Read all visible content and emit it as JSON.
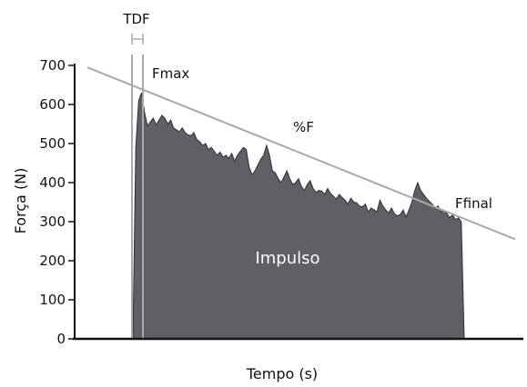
{
  "chart_data": {
    "type": "area",
    "title": "",
    "xlabel": "Tempo (s)",
    "ylabel": "Força (N)",
    "ylim": [
      0,
      700
    ],
    "yticks": [
      0,
      100,
      200,
      300,
      400,
      500,
      600,
      700
    ],
    "x_ticks_shown": false,
    "grid": false,
    "fill_color": "#5f6065",
    "line_color": "#a9a9ab",
    "series": [
      {
        "values": [
          0,
          490,
          610,
          630,
          580,
          545,
          555,
          565,
          548,
          560,
          572,
          565,
          550,
          560,
          540,
          535,
          530,
          540,
          528,
          522,
          520,
          528,
          510,
          505,
          495,
          500,
          485,
          490,
          480,
          470,
          478,
          465,
          470,
          462,
          475,
          455,
          470,
          480,
          490,
          485,
          440,
          420,
          430,
          445,
          460,
          470,
          495,
          470,
          430,
          425,
          410,
          400,
          415,
          430,
          410,
          395,
          400,
          410,
          390,
          380,
          395,
          405,
          385,
          375,
          380,
          378,
          370,
          385,
          372,
          365,
          358,
          370,
          362,
          355,
          345,
          360,
          350,
          348,
          340,
          338,
          345,
          325,
          335,
          330,
          325,
          355,
          340,
          330,
          322,
          335,
          320,
          315,
          318,
          330,
          312,
          330,
          350,
          380,
          400,
          380,
          370,
          360,
          352,
          345,
          335,
          340,
          325,
          330,
          322,
          310,
          318,
          305,
          310,
          300,
          0
        ]
      }
    ],
    "annotations": {
      "tdf_label": "TDF",
      "fmax_label": "Fmax",
      "pct_label": "%F",
      "ffinal_label": "Ffinal",
      "area_label": "Impulso"
    },
    "trend_line": {
      "from_force": 695,
      "to_force": 255
    }
  }
}
